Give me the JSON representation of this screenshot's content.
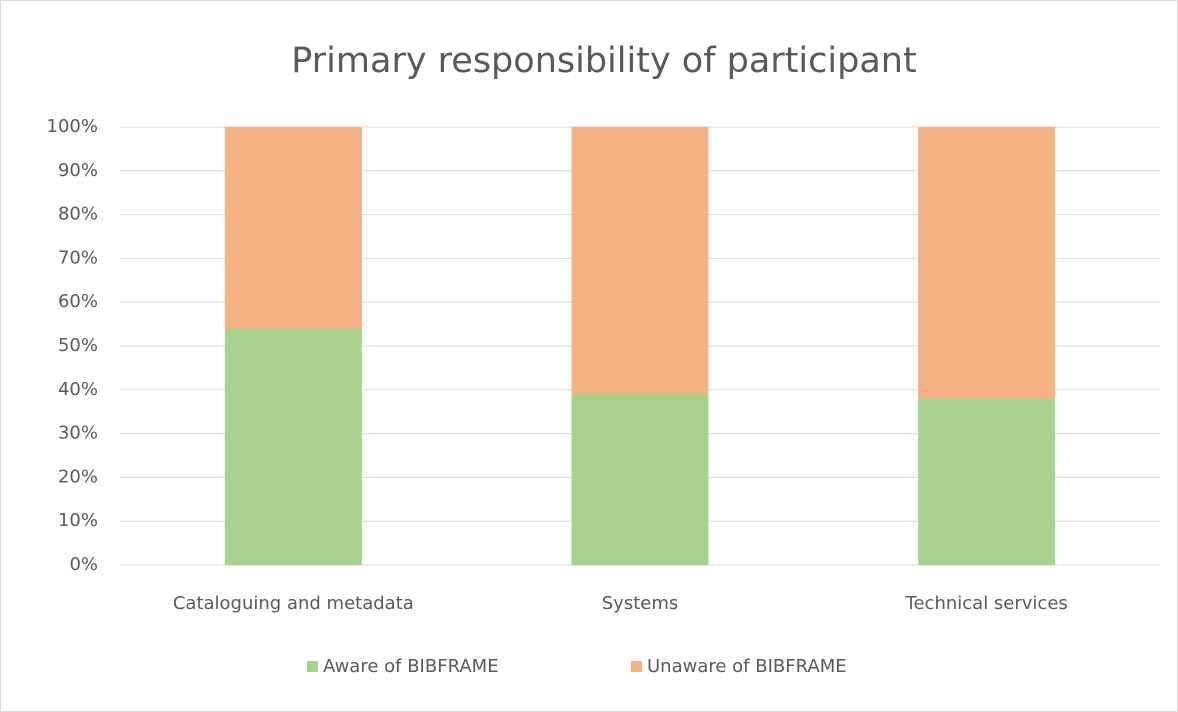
{
  "chart_data": {
    "type": "stacked_bar",
    "title": "Primary responsibility of participant",
    "categories": [
      "Cataloguing and metadata",
      "Systems",
      "Technical services"
    ],
    "series": [
      {
        "name": "Aware of BIBFRAME",
        "color": "#a9d18e",
        "values": [
          54,
          39,
          38
        ]
      },
      {
        "name": "Unaware of BIBFRAME",
        "color": "#f4b183",
        "values": [
          46,
          61,
          62
        ]
      }
    ],
    "ylim": [
      0,
      100
    ],
    "yticks": [
      {
        "value": 0,
        "label": "0%"
      },
      {
        "value": 10,
        "label": "10%"
      },
      {
        "value": 20,
        "label": "20%"
      },
      {
        "value": 30,
        "label": "30%"
      },
      {
        "value": 40,
        "label": "40%"
      },
      {
        "value": 50,
        "label": "50%"
      },
      {
        "value": 60,
        "label": "60%"
      },
      {
        "value": 70,
        "label": "70%"
      },
      {
        "value": 80,
        "label": "80%"
      },
      {
        "value": 90,
        "label": "90%"
      },
      {
        "value": 100,
        "label": "100%"
      }
    ],
    "grid": true,
    "legend": "bottom"
  }
}
